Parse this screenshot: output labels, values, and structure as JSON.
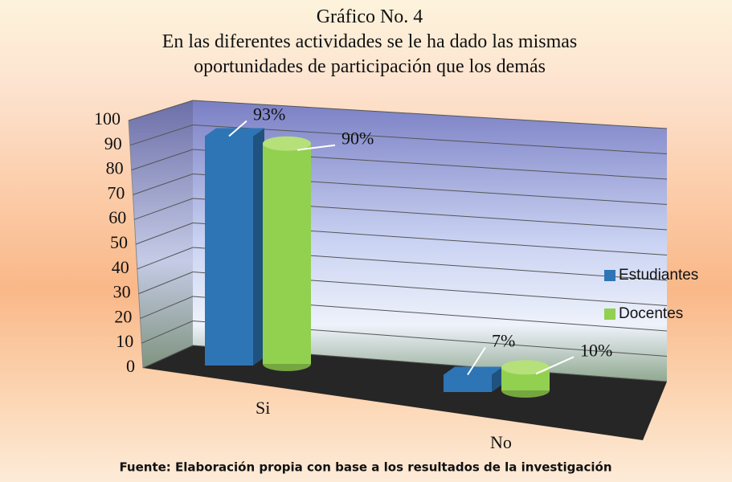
{
  "chart_data": {
    "type": "bar3d",
    "title": "Gráfico No. 4",
    "subtitle": "En las diferentes actividades se le ha dado las mismas oportunidades de participación que los demás",
    "categories": [
      "Si",
      "No"
    ],
    "series": [
      {
        "name": "Estudiantes",
        "color": "#2e75b6",
        "values": [
          93,
          7
        ],
        "value_labels": [
          "93%",
          "7%"
        ]
      },
      {
        "name": "Docentes",
        "color": "#92d050",
        "values": [
          90,
          10
        ],
        "value_labels": [
          "90%",
          "10%"
        ]
      }
    ],
    "ylim": [
      0,
      100
    ],
    "yticks": [
      0,
      10,
      20,
      30,
      40,
      50,
      60,
      70,
      80,
      90,
      100
    ],
    "grid": true,
    "legend": "right",
    "source": "Fuente: Elaboración propia con base a los resultados de la investigación"
  }
}
